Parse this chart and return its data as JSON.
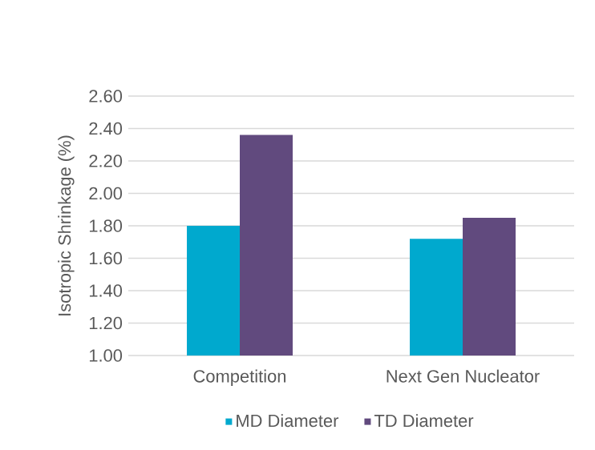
{
  "chart_data": {
    "type": "bar",
    "ylabel": "Isotropic Shrinkage (%)",
    "categories": [
      "Competition",
      "Next Gen Nucleator"
    ],
    "series": [
      {
        "name": "MD Diameter",
        "color": "#00a9ce",
        "values": [
          1.8,
          1.72
        ]
      },
      {
        "name": "TD Diameter",
        "color": "#614a7e",
        "values": [
          2.36,
          1.85
        ]
      }
    ],
    "ylim": [
      1.0,
      2.6
    ],
    "yticks": [
      {
        "value": 1.0,
        "label": "1.00"
      },
      {
        "value": 1.2,
        "label": "1.20"
      },
      {
        "value": 1.4,
        "label": "1.40"
      },
      {
        "value": 1.6,
        "label": "1.60"
      },
      {
        "value": 1.8,
        "label": "1.80"
      },
      {
        "value": 2.0,
        "label": "2.00"
      },
      {
        "value": 2.2,
        "label": "2.20"
      },
      {
        "value": 2.4,
        "label": "2.40"
      },
      {
        "value": 2.6,
        "label": "2.60"
      }
    ],
    "grid": "y",
    "legend": "bottom"
  }
}
